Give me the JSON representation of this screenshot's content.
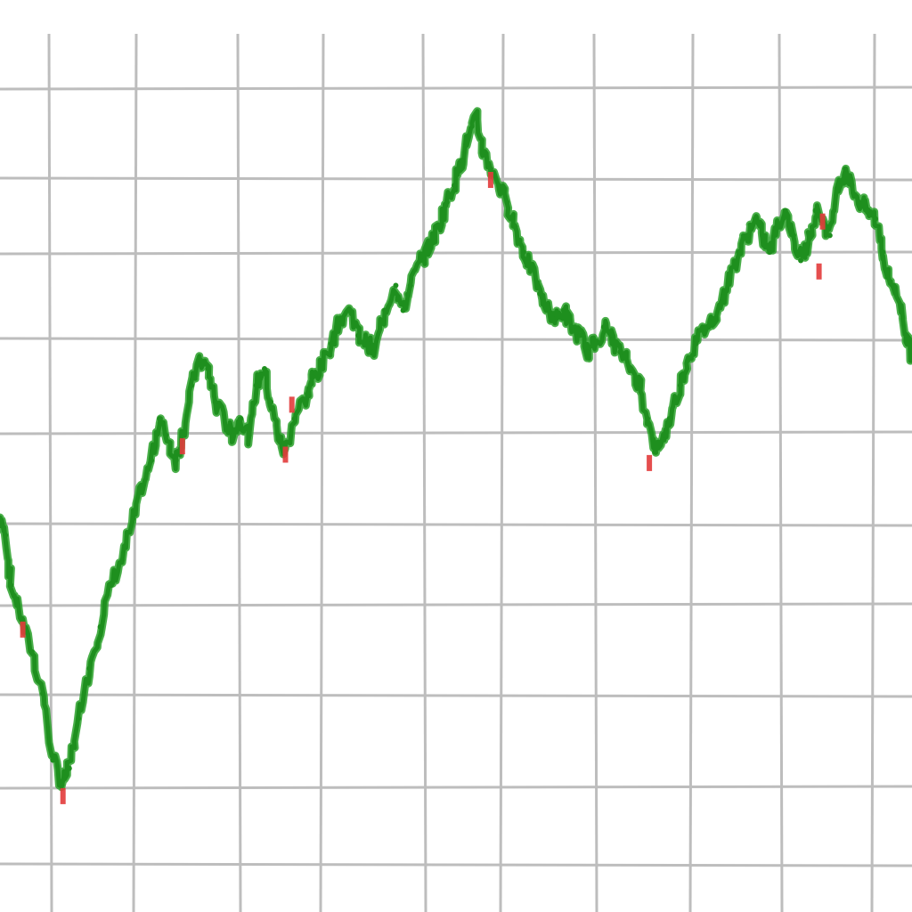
{
  "chart_data": {
    "type": "line",
    "grid": true,
    "legend": "none",
    "title": "",
    "xlabel": "",
    "ylabel": "",
    "xlim": [
      0,
      100
    ],
    "ylim": [
      0,
      100
    ],
    "colors": {
      "line": "#1e8f1e",
      "down_marks": "#e23b3b",
      "grid": "#bdbdbd",
      "background": "#ffffff"
    },
    "series": [
      {
        "values": [
          [
            0,
            42
          ],
          [
            0.6,
            40
          ],
          [
            1.2,
            34
          ],
          [
            2.4,
            30
          ],
          [
            3.5,
            26
          ],
          [
            4.7,
            21
          ],
          [
            5.8,
            13
          ],
          [
            6.8,
            10
          ],
          [
            7.6,
            12
          ],
          [
            8.6,
            18
          ],
          [
            9.8,
            24
          ],
          [
            11.0,
            29
          ],
          [
            12.2,
            34
          ],
          [
            13.4,
            37
          ],
          [
            14.6,
            42
          ],
          [
            15.6,
            46
          ],
          [
            16.6,
            49
          ],
          [
            17.5,
            54
          ],
          [
            18.2,
            52
          ],
          [
            19.3,
            49
          ],
          [
            20.0,
            52
          ],
          [
            21.0,
            58
          ],
          [
            22.0,
            61
          ],
          [
            22.8,
            60
          ],
          [
            23.6,
            56
          ],
          [
            25.0,
            53
          ],
          [
            25.5,
            52
          ],
          [
            26.4,
            54
          ],
          [
            27.3,
            52
          ],
          [
            28.1,
            58
          ],
          [
            29.0,
            60
          ],
          [
            29.7,
            56
          ],
          [
            30.5,
            52
          ],
          [
            31.2,
            50
          ],
          [
            32.3,
            54
          ],
          [
            33.7,
            57
          ],
          [
            34.3,
            59
          ],
          [
            35.2,
            60
          ],
          [
            36.3,
            63
          ],
          [
            37.4,
            66
          ],
          [
            38.4,
            67
          ],
          [
            39.3,
            64
          ],
          [
            40.3,
            63
          ],
          [
            41.0,
            62
          ],
          [
            42.2,
            67
          ],
          [
            43.4,
            70
          ],
          [
            44.2,
            67
          ],
          [
            45.0,
            70
          ],
          [
            46.1,
            73
          ],
          [
            47.2,
            75
          ],
          [
            48.1,
            77
          ],
          [
            49.0,
            80
          ],
          [
            49.8,
            82
          ],
          [
            50.6,
            85
          ],
          [
            51.4,
            88
          ],
          [
            52.3,
            90
          ],
          [
            53.0,
            86
          ],
          [
            53.8,
            84
          ],
          [
            54.7,
            82
          ],
          [
            55.6,
            80
          ],
          [
            56.5,
            77
          ],
          [
            57.4,
            74
          ],
          [
            58.3,
            72
          ],
          [
            59.2,
            69
          ],
          [
            60.1,
            67
          ],
          [
            61.0,
            66
          ],
          [
            61.8,
            67
          ],
          [
            62.7,
            65
          ],
          [
            63.6,
            64
          ],
          [
            64.4,
            62
          ],
          [
            65.3,
            63
          ],
          [
            66.2,
            65
          ],
          [
            67.0,
            64
          ],
          [
            68.0,
            62
          ],
          [
            69.2,
            60
          ],
          [
            70.2,
            58
          ],
          [
            71.0,
            54
          ],
          [
            71.8,
            50
          ],
          [
            72.8,
            52
          ],
          [
            73.4,
            54
          ],
          [
            74.6,
            58
          ],
          [
            75.4,
            61
          ],
          [
            76.3,
            63
          ],
          [
            77.3,
            65
          ],
          [
            78.2,
            66
          ],
          [
            79.1,
            68
          ],
          [
            80.0,
            71
          ],
          [
            81.0,
            74
          ],
          [
            81.9,
            76
          ],
          [
            82.8,
            78
          ],
          [
            83.6,
            76
          ],
          [
            84.4,
            74
          ],
          [
            85.3,
            77
          ],
          [
            86.1,
            79
          ],
          [
            87.0,
            76
          ],
          [
            87.8,
            73
          ],
          [
            88.6,
            75
          ],
          [
            89.4,
            79
          ],
          [
            90.2,
            78
          ],
          [
            91.0,
            76
          ],
          [
            91.9,
            82
          ],
          [
            92.7,
            84
          ],
          [
            93.4,
            82
          ],
          [
            94.2,
            80
          ],
          [
            95.1,
            79
          ],
          [
            96.0,
            78
          ],
          [
            96.8,
            74
          ],
          [
            97.3,
            71
          ],
          [
            98.0,
            70
          ],
          [
            98.8,
            67
          ],
          [
            99.4,
            64
          ],
          [
            100.0,
            61
          ]
        ]
      }
    ],
    "down_marks": [
      [
        2.5,
        29
      ],
      [
        6.9,
        9
      ],
      [
        20.0,
        51
      ],
      [
        31.3,
        50
      ],
      [
        32.0,
        56
      ],
      [
        53.8,
        83
      ],
      [
        71.2,
        49
      ],
      [
        89.8,
        72
      ],
      [
        90.2,
        78
      ]
    ]
  }
}
